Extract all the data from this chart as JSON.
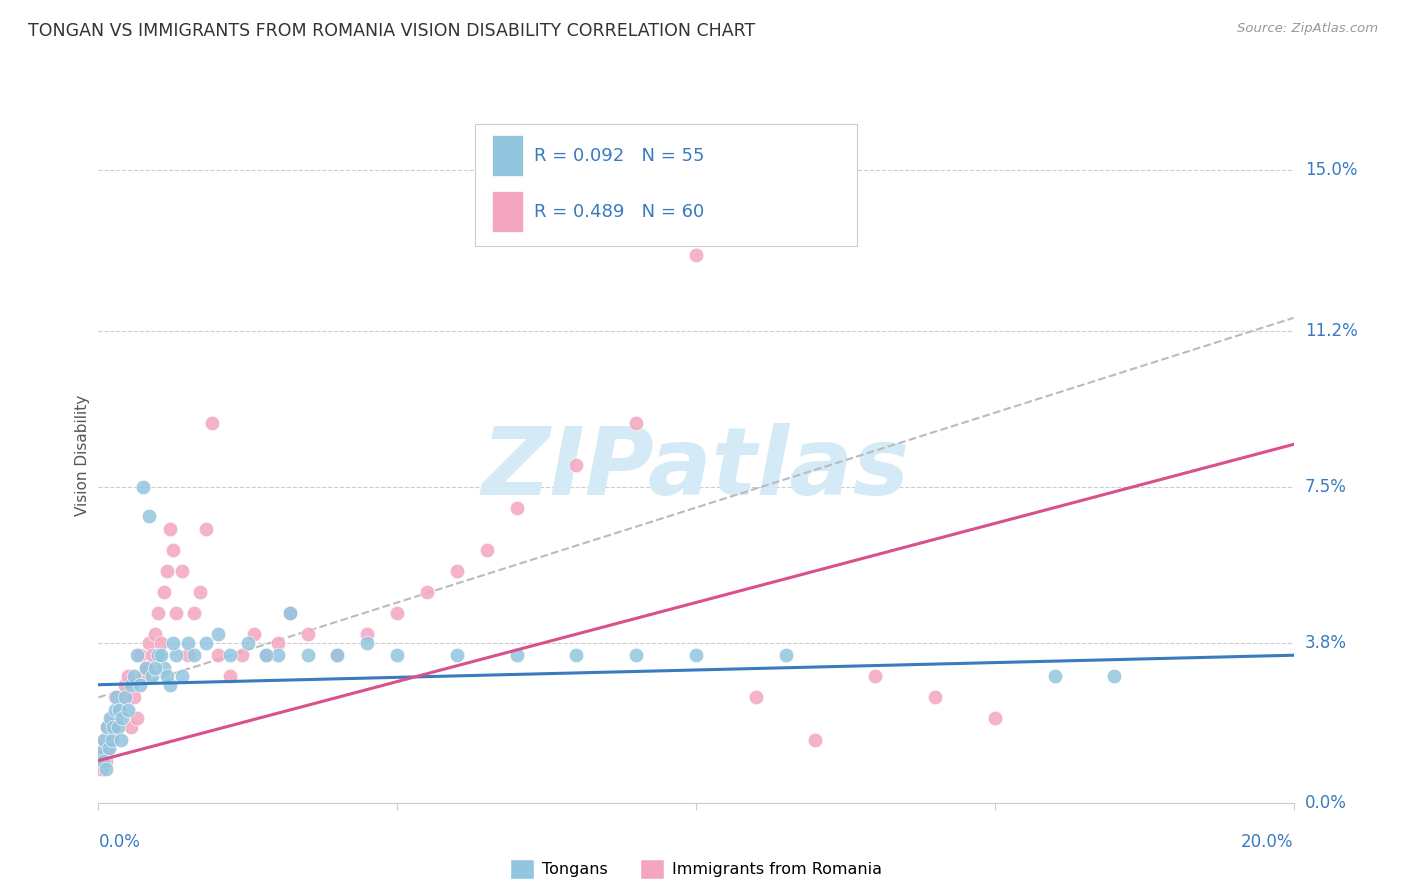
{
  "title": "TONGAN VS IMMIGRANTS FROM ROMANIA VISION DISABILITY CORRELATION CHART",
  "source": "Source: ZipAtlas.com",
  "ylabel": "Vision Disability",
  "ytick_labels": [
    "0.0%",
    "3.8%",
    "7.5%",
    "11.2%",
    "15.0%"
  ],
  "ytick_values": [
    0.0,
    3.8,
    7.5,
    11.2,
    15.0
  ],
  "xlim": [
    0.0,
    20.0
  ],
  "ylim": [
    0.0,
    16.5
  ],
  "blue_color": "#92c5de",
  "pink_color": "#f4a6c0",
  "blue_line_color": "#3a7abf",
  "pink_line_color": "#d9508a",
  "dash_line_color": "#bbbbbb",
  "background_color": "#ffffff",
  "watermark_text": "ZIPatlas",
  "watermark_color": "#d5eaf7",
  "title_fontsize": 12.5,
  "label_fontsize": 11,
  "tick_label_fontsize": 12,
  "tongan_x": [
    0.05,
    0.08,
    0.1,
    0.12,
    0.15,
    0.18,
    0.2,
    0.22,
    0.25,
    0.28,
    0.3,
    0.32,
    0.35,
    0.38,
    0.4,
    0.45,
    0.5,
    0.55,
    0.6,
    0.65,
    0.7,
    0.8,
    0.9,
    1.0,
    1.1,
    1.2,
    1.3,
    1.4,
    1.5,
    1.6,
    1.8,
    2.0,
    2.2,
    2.5,
    3.0,
    3.5,
    4.5,
    5.0,
    6.0,
    7.0,
    8.0,
    9.0,
    10.0,
    11.5,
    16.0,
    17.0,
    0.75,
    0.85,
    0.95,
    1.05,
    1.15,
    1.25,
    2.8,
    3.2,
    4.0
  ],
  "tongan_y": [
    1.2,
    1.0,
    1.5,
    0.8,
    1.8,
    1.3,
    2.0,
    1.5,
    1.8,
    2.2,
    2.5,
    1.8,
    2.2,
    1.5,
    2.0,
    2.5,
    2.2,
    2.8,
    3.0,
    3.5,
    2.8,
    3.2,
    3.0,
    3.5,
    3.2,
    2.8,
    3.5,
    3.0,
    3.8,
    3.5,
    3.8,
    4.0,
    3.5,
    3.8,
    3.5,
    3.5,
    3.8,
    3.5,
    3.5,
    3.5,
    3.5,
    3.5,
    3.5,
    3.5,
    3.0,
    3.0,
    7.5,
    6.8,
    3.2,
    3.5,
    3.0,
    3.8,
    3.5,
    4.5,
    3.5
  ],
  "romania_x": [
    0.05,
    0.08,
    0.1,
    0.12,
    0.15,
    0.18,
    0.2,
    0.22,
    0.25,
    0.28,
    0.3,
    0.35,
    0.4,
    0.45,
    0.5,
    0.55,
    0.6,
    0.65,
    0.7,
    0.75,
    0.8,
    0.85,
    0.9,
    0.95,
    1.0,
    1.05,
    1.1,
    1.15,
    1.2,
    1.25,
    1.3,
    1.4,
    1.5,
    1.6,
    1.7,
    1.8,
    1.9,
    2.0,
    2.2,
    2.4,
    2.6,
    2.8,
    3.0,
    3.2,
    3.5,
    4.0,
    4.5,
    5.0,
    5.5,
    6.0,
    6.5,
    7.0,
    8.0,
    9.0,
    10.0,
    11.0,
    12.0,
    13.0,
    14.0,
    15.0
  ],
  "romania_y": [
    0.8,
    1.2,
    1.5,
    1.0,
    1.8,
    1.3,
    1.5,
    2.0,
    1.8,
    2.5,
    2.0,
    2.2,
    2.5,
    2.8,
    3.0,
    1.8,
    2.5,
    2.0,
    3.5,
    3.0,
    3.2,
    3.8,
    3.5,
    4.0,
    4.5,
    3.8,
    5.0,
    5.5,
    6.5,
    6.0,
    4.5,
    5.5,
    3.5,
    4.5,
    5.0,
    6.5,
    9.0,
    3.5,
    3.0,
    3.5,
    4.0,
    3.5,
    3.8,
    4.5,
    4.0,
    3.5,
    4.0,
    4.5,
    5.0,
    5.5,
    6.0,
    7.0,
    8.0,
    9.0,
    13.0,
    2.5,
    1.5,
    3.0,
    2.5,
    2.0
  ],
  "blue_trendline_start_y": 2.8,
  "blue_trendline_end_y": 3.5,
  "pink_trendline_start_y": 1.0,
  "pink_trendline_end_y": 8.5,
  "dash_trendline_start_y": 2.5,
  "dash_trendline_end_y": 11.5
}
